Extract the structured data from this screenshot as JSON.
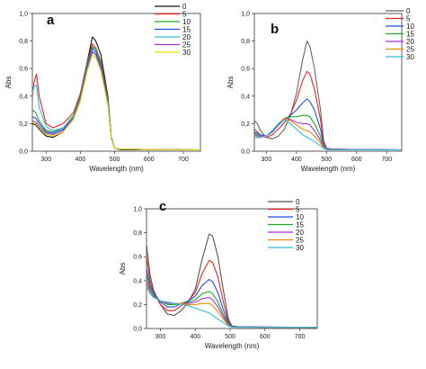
{
  "colors": {
    "0": "#111111",
    "5": "#ee2222",
    "10": "#1f4fe0",
    "15": "#22aa22",
    "20": "#aa33cc",
    "25": "#ee8a00",
    "30": "#33bbdd"
  },
  "chart_data": [
    {
      "type": "line",
      "panel": "a",
      "xlabel": "Wavelength (nm)",
      "ylabel": "Abs",
      "xlim": [
        260,
        750
      ],
      "ylim": [
        0,
        1.0
      ],
      "xticks": [
        "300",
        "400",
        "500",
        "600",
        "700"
      ],
      "yticks": [
        "0,0",
        "0,2",
        "0,4",
        "0,6",
        "0,8",
        "1,0"
      ],
      "legend_position": "top-right",
      "legend_colors": [
        "#111111",
        "#ee2222",
        "#22aa22",
        "#1f4fe0",
        "#33bbdd",
        "#aa33cc",
        "#e8e000"
      ],
      "series": [
        {
          "name": "0",
          "color": "#111111",
          "x": [
            260,
            270,
            280,
            300,
            320,
            350,
            380,
            400,
            420,
            435,
            445,
            460,
            480,
            490,
            500,
            520,
            600,
            750
          ],
          "y": [
            0.2,
            0.19,
            0.16,
            0.11,
            0.1,
            0.14,
            0.25,
            0.4,
            0.65,
            0.83,
            0.8,
            0.7,
            0.4,
            0.1,
            0.02,
            0.01,
            0.01,
            0.01
          ]
        },
        {
          "name": "5",
          "color": "#ee2222",
          "x": [
            260,
            265,
            272,
            280,
            300,
            320,
            350,
            380,
            400,
            420,
            435,
            445,
            460,
            480,
            490,
            500,
            520,
            600,
            750
          ],
          "y": [
            0.4,
            0.5,
            0.56,
            0.4,
            0.2,
            0.17,
            0.2,
            0.28,
            0.42,
            0.65,
            0.78,
            0.75,
            0.65,
            0.38,
            0.1,
            0.02,
            0.015,
            0.012,
            0.01
          ]
        },
        {
          "name": "10",
          "color": "#22aa22",
          "x": [
            260,
            270,
            280,
            300,
            320,
            350,
            380,
            400,
            420,
            435,
            445,
            460,
            480,
            490,
            500,
            520,
            600,
            750
          ],
          "y": [
            0.3,
            0.28,
            0.22,
            0.15,
            0.14,
            0.17,
            0.26,
            0.4,
            0.63,
            0.76,
            0.74,
            0.64,
            0.37,
            0.1,
            0.02,
            0.015,
            0.012,
            0.01
          ]
        },
        {
          "name": "15",
          "color": "#1f4fe0",
          "x": [
            260,
            270,
            280,
            300,
            320,
            350,
            380,
            400,
            420,
            435,
            445,
            460,
            480,
            490,
            500,
            520,
            600,
            750
          ],
          "y": [
            0.25,
            0.24,
            0.2,
            0.14,
            0.13,
            0.16,
            0.25,
            0.39,
            0.62,
            0.75,
            0.72,
            0.62,
            0.36,
            0.1,
            0.02,
            0.015,
            0.012,
            0.01
          ]
        },
        {
          "name": "20",
          "color": "#33bbdd",
          "x": [
            260,
            265,
            272,
            280,
            300,
            320,
            350,
            380,
            400,
            420,
            435,
            445,
            460,
            480,
            490,
            500,
            520,
            600,
            750
          ],
          "y": [
            0.42,
            0.47,
            0.48,
            0.32,
            0.18,
            0.15,
            0.17,
            0.25,
            0.38,
            0.6,
            0.73,
            0.7,
            0.6,
            0.35,
            0.09,
            0.02,
            0.015,
            0.012,
            0.01
          ]
        },
        {
          "name": "25",
          "color": "#aa33cc",
          "x": [
            260,
            270,
            280,
            300,
            320,
            350,
            380,
            400,
            420,
            435,
            445,
            460,
            480,
            490,
            500,
            520,
            600,
            750
          ],
          "y": [
            0.22,
            0.21,
            0.18,
            0.13,
            0.12,
            0.15,
            0.24,
            0.37,
            0.59,
            0.72,
            0.7,
            0.6,
            0.34,
            0.09,
            0.02,
            0.015,
            0.012,
            0.01
          ]
        },
        {
          "name": "30",
          "color": "#e8e000",
          "x": [
            260,
            270,
            280,
            300,
            320,
            350,
            380,
            400,
            420,
            435,
            445,
            460,
            480,
            490,
            500,
            520,
            600,
            750
          ],
          "y": [
            0.21,
            0.2,
            0.17,
            0.12,
            0.11,
            0.14,
            0.23,
            0.36,
            0.58,
            0.7,
            0.68,
            0.58,
            0.33,
            0.09,
            0.02,
            0.015,
            0.012,
            0.01
          ]
        }
      ]
    },
    {
      "type": "line",
      "panel": "b",
      "xlabel": "Wavelength (nm)",
      "ylabel": "Abs",
      "xlim": [
        260,
        750
      ],
      "ylim": [
        0,
        1.0
      ],
      "xticks": [
        "300",
        "400",
        "500",
        "600",
        "700"
      ],
      "yticks": [
        "0,0",
        "0,2",
        "0,4",
        "0,6",
        "0,8",
        "1,0"
      ],
      "legend_position": "top-right",
      "legend_colors": [
        "#666666",
        "#ee2222",
        "#1f4fe0",
        "#22aa22",
        "#aa33cc",
        "#ee8a00",
        "#33bbdd"
      ],
      "series": [
        {
          "name": "0",
          "color": "#666666",
          "x": [
            260,
            270,
            280,
            300,
            320,
            340,
            360,
            380,
            400,
            420,
            435,
            445,
            460,
            480,
            490,
            500,
            520,
            600,
            750
          ],
          "y": [
            0.22,
            0.2,
            0.15,
            0.1,
            0.09,
            0.11,
            0.16,
            0.26,
            0.42,
            0.66,
            0.8,
            0.76,
            0.6,
            0.3,
            0.08,
            0.02,
            0.015,
            0.012,
            0.01
          ]
        },
        {
          "name": "5",
          "color": "#ee2222",
          "x": [
            260,
            270,
            280,
            300,
            320,
            340,
            360,
            380,
            400,
            420,
            435,
            445,
            460,
            480,
            490,
            500,
            520,
            600,
            750
          ],
          "y": [
            0.16,
            0.14,
            0.12,
            0.1,
            0.12,
            0.16,
            0.21,
            0.27,
            0.37,
            0.51,
            0.58,
            0.56,
            0.45,
            0.23,
            0.07,
            0.02,
            0.015,
            0.012,
            0.01
          ]
        },
        {
          "name": "10",
          "color": "#1f4fe0",
          "x": [
            260,
            270,
            280,
            300,
            320,
            340,
            360,
            380,
            400,
            420,
            435,
            445,
            460,
            480,
            490,
            500,
            520,
            600,
            750
          ],
          "y": [
            0.14,
            0.13,
            0.12,
            0.11,
            0.14,
            0.19,
            0.23,
            0.26,
            0.3,
            0.35,
            0.38,
            0.36,
            0.3,
            0.16,
            0.05,
            0.02,
            0.015,
            0.012,
            0.01
          ]
        },
        {
          "name": "15",
          "color": "#22aa22",
          "x": [
            260,
            270,
            280,
            300,
            320,
            340,
            360,
            380,
            400,
            420,
            435,
            445,
            460,
            480,
            490,
            500,
            520,
            600,
            750
          ],
          "y": [
            0.13,
            0.12,
            0.11,
            0.11,
            0.15,
            0.2,
            0.24,
            0.25,
            0.25,
            0.26,
            0.26,
            0.25,
            0.2,
            0.11,
            0.04,
            0.015,
            0.012,
            0.011,
            0.01
          ]
        },
        {
          "name": "20",
          "color": "#aa33cc",
          "x": [
            260,
            270,
            280,
            300,
            320,
            340,
            360,
            380,
            400,
            420,
            435,
            445,
            460,
            480,
            490,
            500,
            520,
            600,
            750
          ],
          "y": [
            0.12,
            0.11,
            0.11,
            0.11,
            0.15,
            0.2,
            0.24,
            0.23,
            0.21,
            0.2,
            0.2,
            0.19,
            0.15,
            0.08,
            0.03,
            0.015,
            0.012,
            0.011,
            0.01
          ]
        },
        {
          "name": "25",
          "color": "#ee8a00",
          "x": [
            260,
            270,
            280,
            300,
            320,
            340,
            360,
            380,
            400,
            420,
            435,
            445,
            460,
            480,
            490,
            500,
            520,
            600,
            750
          ],
          "y": [
            0.11,
            0.1,
            0.1,
            0.11,
            0.15,
            0.2,
            0.24,
            0.22,
            0.19,
            0.16,
            0.15,
            0.14,
            0.11,
            0.06,
            0.025,
            0.012,
            0.011,
            0.01,
            0.01
          ]
        },
        {
          "name": "30",
          "color": "#33bbdd",
          "x": [
            260,
            270,
            280,
            300,
            320,
            340,
            360,
            380,
            400,
            420,
            435,
            445,
            460,
            480,
            490,
            500,
            520,
            600,
            750
          ],
          "y": [
            0.1,
            0.1,
            0.1,
            0.11,
            0.15,
            0.2,
            0.23,
            0.2,
            0.16,
            0.12,
            0.1,
            0.09,
            0.07,
            0.04,
            0.02,
            0.011,
            0.01,
            0.01,
            0.01
          ]
        }
      ]
    },
    {
      "type": "line",
      "panel": "c",
      "xlabel": "Wavelength (nm)",
      "ylabel": "Abs",
      "xlim": [
        260,
        750
      ],
      "ylim": [
        0,
        1.0
      ],
      "xticks": [
        "300",
        "400",
        "500",
        "600",
        "700"
      ],
      "yticks": [
        "0,0",
        "0,2",
        "0,4",
        "0,6",
        "0,8",
        "1,0"
      ],
      "legend_position": "top-right",
      "legend_colors": [
        "#555555",
        "#ee2222",
        "#1f4fe0",
        "#22aa22",
        "#aa33cc",
        "#ee8a00",
        "#33bbdd"
      ],
      "series": [
        {
          "name": "0",
          "color": "#555555",
          "x": [
            260,
            270,
            280,
            300,
            320,
            340,
            360,
            380,
            400,
            420,
            440,
            450,
            465,
            480,
            495,
            505,
            520,
            600,
            750
          ],
          "y": [
            0.7,
            0.45,
            0.32,
            0.2,
            0.12,
            0.11,
            0.15,
            0.22,
            0.33,
            0.58,
            0.79,
            0.77,
            0.6,
            0.33,
            0.08,
            0.02,
            0.015,
            0.012,
            0.01
          ]
        },
        {
          "name": "5",
          "color": "#ee2222",
          "x": [
            260,
            270,
            280,
            300,
            320,
            340,
            360,
            380,
            400,
            420,
            440,
            450,
            465,
            480,
            495,
            505,
            520,
            600,
            750
          ],
          "y": [
            0.6,
            0.4,
            0.3,
            0.2,
            0.15,
            0.15,
            0.19,
            0.23,
            0.3,
            0.46,
            0.57,
            0.55,
            0.43,
            0.23,
            0.06,
            0.02,
            0.015,
            0.012,
            0.01
          ]
        },
        {
          "name": "10",
          "color": "#1f4fe0",
          "x": [
            260,
            270,
            280,
            300,
            320,
            340,
            360,
            380,
            400,
            420,
            440,
            450,
            465,
            480,
            495,
            505,
            520,
            600,
            750
          ],
          "y": [
            0.5,
            0.36,
            0.3,
            0.22,
            0.18,
            0.18,
            0.21,
            0.23,
            0.27,
            0.36,
            0.41,
            0.39,
            0.3,
            0.16,
            0.05,
            0.02,
            0.015,
            0.012,
            0.01
          ]
        },
        {
          "name": "15",
          "color": "#22aa22",
          "x": [
            260,
            270,
            280,
            300,
            320,
            340,
            360,
            380,
            400,
            420,
            440,
            450,
            465,
            480,
            495,
            505,
            520,
            600,
            750
          ],
          "y": [
            0.45,
            0.34,
            0.28,
            0.23,
            0.2,
            0.2,
            0.21,
            0.22,
            0.24,
            0.29,
            0.31,
            0.29,
            0.22,
            0.12,
            0.04,
            0.015,
            0.012,
            0.011,
            0.01
          ]
        },
        {
          "name": "20",
          "color": "#aa33cc",
          "x": [
            260,
            270,
            280,
            300,
            320,
            340,
            360,
            380,
            400,
            420,
            440,
            450,
            465,
            480,
            495,
            505,
            520,
            600,
            750
          ],
          "y": [
            0.4,
            0.32,
            0.27,
            0.23,
            0.21,
            0.21,
            0.21,
            0.21,
            0.22,
            0.25,
            0.26,
            0.24,
            0.18,
            0.1,
            0.03,
            0.013,
            0.011,
            0.01,
            0.01
          ]
        },
        {
          "name": "25",
          "color": "#ee8a00",
          "x": [
            260,
            270,
            280,
            300,
            320,
            340,
            360,
            380,
            400,
            420,
            440,
            450,
            465,
            480,
            495,
            505,
            520,
            600,
            750
          ],
          "y": [
            0.38,
            0.3,
            0.26,
            0.23,
            0.22,
            0.21,
            0.21,
            0.2,
            0.2,
            0.21,
            0.21,
            0.19,
            0.14,
            0.08,
            0.025,
            0.012,
            0.011,
            0.01,
            0.01
          ]
        },
        {
          "name": "30",
          "color": "#33bbdd",
          "x": [
            260,
            270,
            280,
            300,
            320,
            340,
            360,
            380,
            400,
            420,
            440,
            450,
            465,
            480,
            495,
            505,
            520,
            600,
            750
          ],
          "y": [
            0.35,
            0.29,
            0.26,
            0.23,
            0.22,
            0.21,
            0.2,
            0.19,
            0.17,
            0.15,
            0.13,
            0.11,
            0.08,
            0.05,
            0.02,
            0.011,
            0.01,
            0.01,
            0.01
          ]
        }
      ]
    }
  ]
}
